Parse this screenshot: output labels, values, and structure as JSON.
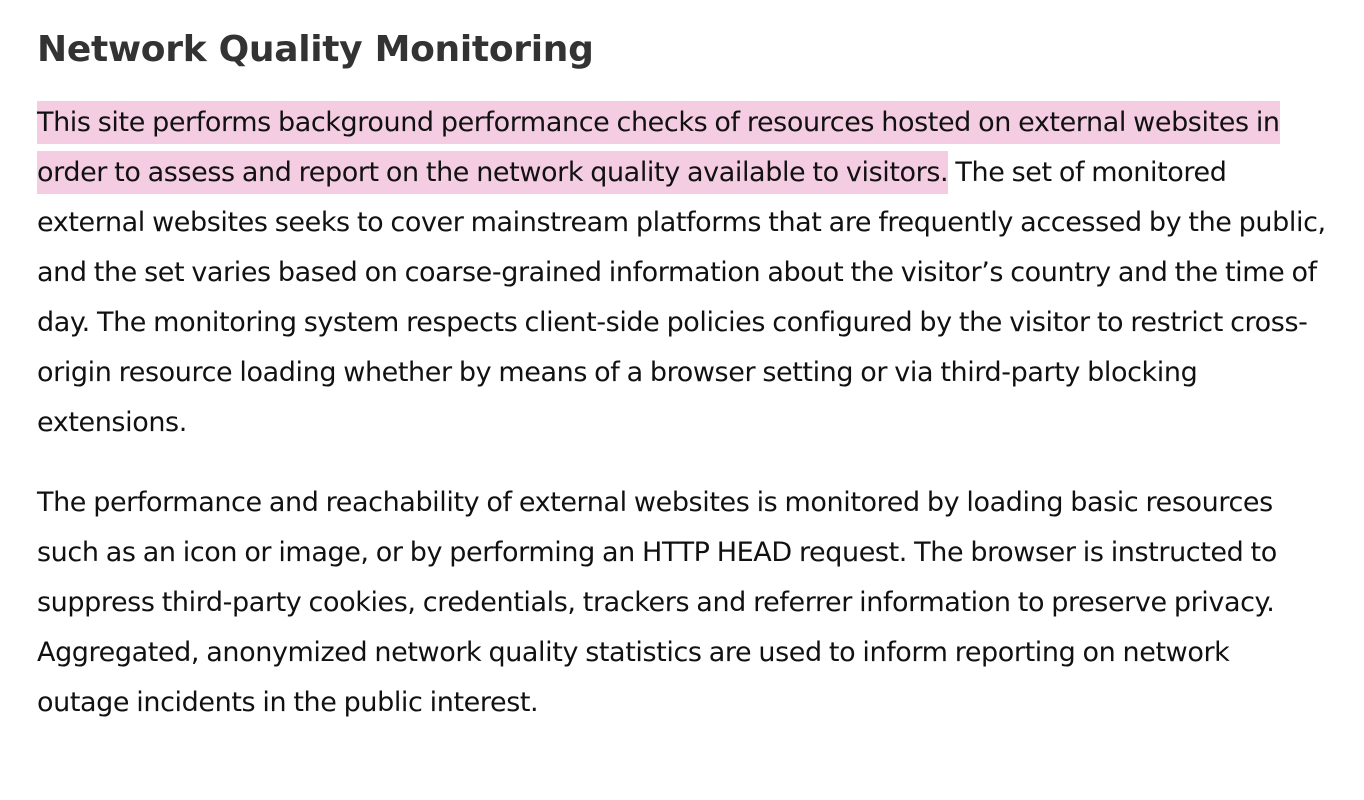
{
  "title": "Network Quality Monitoring",
  "paragraphs": [
    {
      "highlighted": "This site performs background performance checks of resources hosted on external websites in order to assess and report on the network quality available to visitors.",
      "rest": " The set of monitored external websites seeks to cover mainstream platforms that are frequently accessed by the public, and the set varies based on coarse-grained information about the visitor’s country and the time of day. The monitoring system respects client-side policies configured by the visitor to restrict cross-origin resource loading whether by means of a browser setting or via third-party blocking extensions."
    },
    {
      "text": "The performance and reachability of external websites is monitored by loading basic resources such as an icon or image, or by performing an HTTP HEAD request. The browser is instructed to suppress third-party cookies, credentials, trackers and referrer information to preserve privacy. Aggregated, anonymized network quality statistics are used to inform reporting on network outage incidents in the public interest."
    }
  ],
  "colors": {
    "highlight": "#f4cde3",
    "title": "#333333",
    "text": "#111111"
  }
}
